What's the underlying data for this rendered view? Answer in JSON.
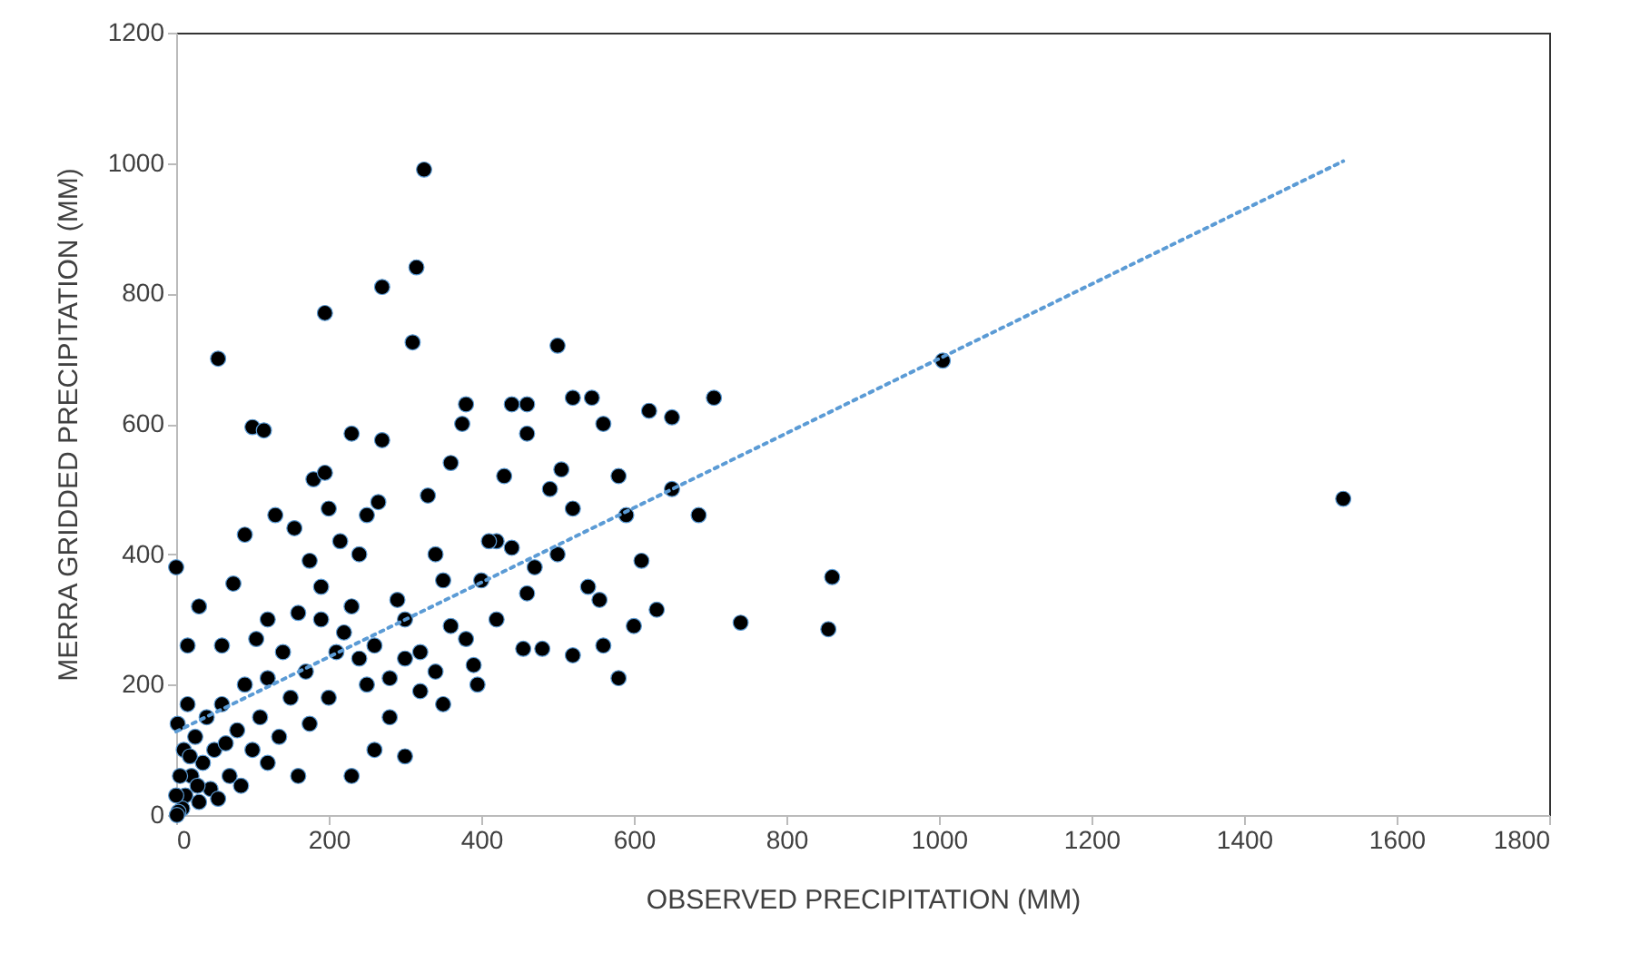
{
  "chart_data": {
    "type": "scatter",
    "xlabel": "OBSERVED PRECIPITATION (MM)",
    "ylabel": "MERRA GRIDDED PRECIPITATION (MM)",
    "xlim": [
      0,
      1800
    ],
    "xticks": [
      0,
      200,
      400,
      600,
      800,
      1000,
      1200,
      1400,
      1600,
      1800
    ],
    "ylim": [
      0,
      1200
    ],
    "yticks": [
      0,
      200,
      400,
      600,
      800,
      1000,
      1200
    ],
    "grid": false,
    "marker": "circle",
    "series": [
      {
        "color": "#000000",
        "x": [
          1530,
          1005,
          860,
          855,
          740,
          685,
          705,
          650,
          650,
          620,
          630,
          610,
          580,
          580,
          590,
          560,
          545,
          520,
          520,
          500,
          480,
          505,
          490,
          460,
          460,
          455,
          440,
          430,
          420,
          380,
          375,
          360,
          325,
          315,
          310,
          270,
          195,
          55,
          100,
          115,
          230,
          270,
          180,
          195,
          0,
          15,
          30,
          75,
          90,
          105,
          130,
          155,
          175,
          200,
          215,
          240,
          250,
          265,
          290,
          300,
          330,
          340,
          350,
          360,
          380,
          400,
          410,
          420,
          440,
          460,
          470,
          500,
          520,
          540,
          555,
          560,
          600,
          395,
          390,
          340,
          320,
          300,
          260,
          230,
          280,
          250,
          210,
          190,
          170,
          150,
          140,
          120,
          110,
          100,
          90,
          80,
          70,
          60,
          50,
          45,
          40,
          35,
          30,
          25,
          20,
          15,
          12,
          10,
          8,
          5,
          3,
          2,
          0,
          1,
          18,
          28,
          55,
          65,
          85,
          120,
          135,
          160,
          175,
          200,
          220,
          240,
          260,
          280,
          300,
          320,
          350,
          230,
          190,
          160,
          120,
          60
        ],
        "values": [
          485,
          697,
          365,
          285,
          295,
          460,
          640,
          610,
          500,
          620,
          315,
          390,
          210,
          520,
          460,
          600,
          640,
          640,
          245,
          720,
          255,
          530,
          500,
          630,
          585,
          255,
          630,
          520,
          420,
          630,
          600,
          540,
          990,
          840,
          725,
          810,
          770,
          700,
          595,
          590,
          585,
          575,
          515,
          525,
          380,
          260,
          320,
          355,
          430,
          270,
          460,
          440,
          390,
          470,
          420,
          400,
          460,
          480,
          330,
          240,
          490,
          400,
          360,
          290,
          270,
          360,
          420,
          300,
          410,
          340,
          380,
          400,
          470,
          350,
          330,
          260,
          290,
          200,
          230,
          220,
          190,
          90,
          100,
          60,
          150,
          200,
          250,
          300,
          220,
          180,
          250,
          300,
          150,
          100,
          200,
          130,
          60,
          170,
          100,
          40,
          150,
          80,
          20,
          120,
          60,
          170,
          30,
          100,
          10,
          60,
          5,
          140,
          30,
          0,
          90,
          45,
          25,
          110,
          45,
          80,
          120,
          60,
          140,
          180,
          280,
          240,
          260,
          210,
          300,
          250,
          170,
          320,
          350,
          310,
          210,
          260
        ]
      },
      {
        "type": "line",
        "color": "#5b9bd5",
        "line_style": "dotted",
        "marker": "none",
        "x": [
          0,
          1530
        ],
        "values": [
          128,
          1003
        ]
      }
    ]
  }
}
